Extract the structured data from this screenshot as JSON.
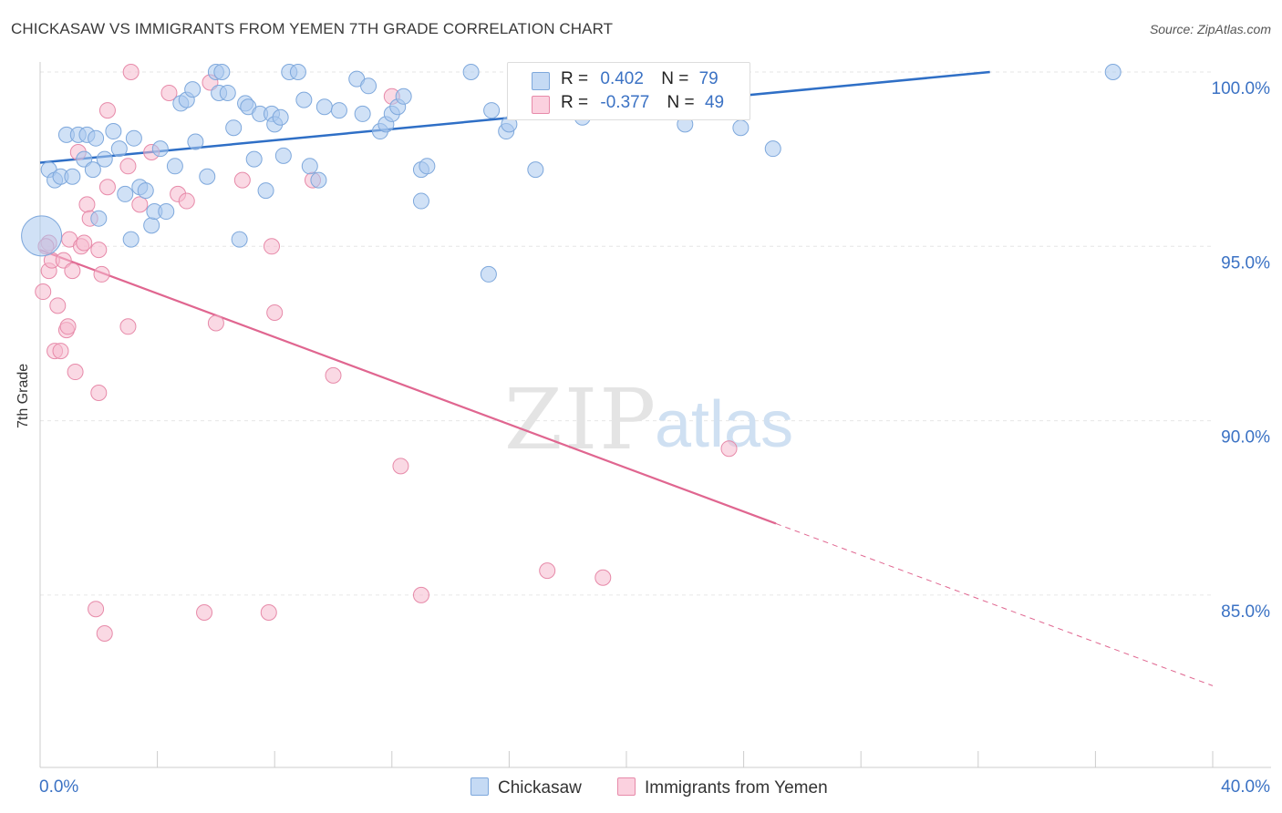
{
  "title": "CHICKASAW VS IMMIGRANTS FROM YEMEN 7TH GRADE CORRELATION CHART",
  "source": "Source: ZipAtlas.com",
  "watermark": {
    "zip": "ZIP",
    "atlas": "atlas"
  },
  "legend": {
    "rows": [
      {
        "r_label": "R =",
        "r_value": "0.402",
        "n_label": "N =",
        "n_value": "79",
        "color": "#aac8ee"
      },
      {
        "r_label": "R =",
        "r_value": "-0.377",
        "n_label": "N =",
        "n_value": "49",
        "color": "#f6b9cd"
      }
    ]
  },
  "bottom_legend": {
    "series_a": "Chickasaw",
    "series_b": "Immigrants from Yemen"
  },
  "colors": {
    "blue_fill": "#aac8ee",
    "blue_stroke": "#7ea8dc",
    "blue_line": "#2f6fc6",
    "pink_fill": "#f6b9cd",
    "pink_stroke": "#e78aa9",
    "pink_line": "#e06690",
    "tick_label": "#3b72c4",
    "grid": "#e6e6e6"
  },
  "chart_data": {
    "type": "scatter",
    "title": "CHICKASAW VS IMMIGRANTS FROM YEMEN 7TH GRADE CORRELATION CHART",
    "xlabel": "",
    "ylabel": "7th Grade",
    "xlim": [
      0,
      40
    ],
    "ylim": [
      80.5,
      100.8
    ],
    "x_tick_labels": [
      {
        "value": 0,
        "label": "0.0%"
      },
      {
        "value": 40,
        "label": "40.0%"
      }
    ],
    "y_tick_labels": [
      {
        "value": 85,
        "label": "85.0%"
      },
      {
        "value": 90,
        "label": "90.0%"
      },
      {
        "value": 95,
        "label": "95.0%"
      },
      {
        "value": 100,
        "label": "100.0%"
      }
    ],
    "legend_position": "top-center",
    "grid": true,
    "series": [
      {
        "name": "Chickasaw",
        "color": "#aac8ee",
        "trend": {
          "x": [
            0,
            32.4
          ],
          "y": [
            97.4,
            100.0
          ],
          "dashed_to": null
        },
        "points": [
          [
            0.05,
            95.3
          ],
          [
            0.3,
            97.2
          ],
          [
            0.5,
            96.9
          ],
          [
            0.7,
            97.0
          ],
          [
            0.9,
            98.2
          ],
          [
            1.1,
            97.0
          ],
          [
            1.3,
            98.2
          ],
          [
            1.5,
            97.5
          ],
          [
            1.6,
            98.2
          ],
          [
            1.8,
            97.2
          ],
          [
            1.9,
            98.1
          ],
          [
            2.0,
            95.8
          ],
          [
            2.2,
            97.5
          ],
          [
            2.5,
            98.3
          ],
          [
            2.7,
            97.8
          ],
          [
            2.9,
            96.5
          ],
          [
            3.1,
            95.2
          ],
          [
            3.2,
            98.1
          ],
          [
            3.4,
            96.7
          ],
          [
            3.6,
            96.6
          ],
          [
            3.8,
            95.6
          ],
          [
            3.9,
            96.0
          ],
          [
            4.1,
            97.8
          ],
          [
            4.3,
            96.0
          ],
          [
            4.6,
            97.3
          ],
          [
            4.8,
            99.1
          ],
          [
            5.0,
            99.2
          ],
          [
            5.2,
            99.5
          ],
          [
            5.3,
            98.0
          ],
          [
            5.7,
            97.0
          ],
          [
            6.0,
            100.0
          ],
          [
            6.1,
            99.4
          ],
          [
            6.2,
            100.0
          ],
          [
            6.4,
            99.4
          ],
          [
            6.6,
            98.4
          ],
          [
            6.8,
            95.2
          ],
          [
            7.0,
            99.1
          ],
          [
            7.1,
            99.0
          ],
          [
            7.3,
            97.5
          ],
          [
            7.5,
            98.8
          ],
          [
            7.7,
            96.6
          ],
          [
            7.9,
            98.8
          ],
          [
            8.0,
            98.5
          ],
          [
            8.2,
            98.7
          ],
          [
            8.3,
            97.6
          ],
          [
            8.5,
            100.0
          ],
          [
            8.8,
            100.0
          ],
          [
            9.0,
            99.2
          ],
          [
            9.2,
            97.3
          ],
          [
            9.5,
            96.9
          ],
          [
            9.7,
            99.0
          ],
          [
            10.2,
            98.9
          ],
          [
            10.8,
            99.8
          ],
          [
            11.0,
            98.8
          ],
          [
            11.2,
            99.6
          ],
          [
            11.6,
            98.3
          ],
          [
            11.8,
            98.5
          ],
          [
            12.0,
            98.8
          ],
          [
            12.2,
            99.0
          ],
          [
            12.4,
            99.3
          ],
          [
            13.0,
            97.2
          ],
          [
            13.2,
            97.3
          ],
          [
            13.0,
            96.3
          ],
          [
            14.7,
            100.0
          ],
          [
            15.3,
            94.2
          ],
          [
            15.4,
            98.9
          ],
          [
            15.9,
            98.3
          ],
          [
            16.0,
            98.5
          ],
          [
            16.5,
            100.0
          ],
          [
            16.9,
            97.2
          ],
          [
            17.8,
            100.0
          ],
          [
            18.5,
            98.7
          ],
          [
            18.8,
            100.0
          ],
          [
            20.0,
            98.9
          ],
          [
            21.3,
            100.0
          ],
          [
            22.0,
            98.5
          ],
          [
            22.9,
            100.0
          ],
          [
            23.9,
            98.4
          ],
          [
            25.0,
            97.8
          ],
          [
            36.6,
            100.0
          ]
        ]
      },
      {
        "name": "Immigrants from Yemen",
        "color": "#f6b9cd",
        "trend": {
          "x": [
            0,
            25.1
          ],
          "y": [
            94.9,
            87.05
          ],
          "dashed_to": {
            "x": 40,
            "y": 82.4
          }
        },
        "points": [
          [
            0.1,
            93.7
          ],
          [
            0.3,
            94.3
          ],
          [
            0.3,
            95.1
          ],
          [
            0.4,
            94.6
          ],
          [
            0.5,
            92.0
          ],
          [
            0.6,
            93.3
          ],
          [
            0.7,
            92.0
          ],
          [
            0.8,
            94.6
          ],
          [
            0.9,
            92.6
          ],
          [
            0.95,
            92.7
          ],
          [
            1.0,
            95.2
          ],
          [
            1.1,
            94.3
          ],
          [
            1.2,
            91.4
          ],
          [
            1.3,
            97.7
          ],
          [
            1.4,
            95.0
          ],
          [
            1.5,
            95.1
          ],
          [
            1.6,
            96.2
          ],
          [
            1.7,
            95.8
          ],
          [
            1.9,
            84.6
          ],
          [
            2.0,
            94.9
          ],
          [
            2.0,
            90.8
          ],
          [
            2.1,
            94.2
          ],
          [
            2.2,
            83.9
          ],
          [
            2.3,
            96.7
          ],
          [
            2.3,
            98.9
          ],
          [
            3.0,
            97.3
          ],
          [
            3.0,
            92.7
          ],
          [
            3.1,
            100.0
          ],
          [
            3.4,
            96.2
          ],
          [
            3.8,
            97.7
          ],
          [
            4.4,
            99.4
          ],
          [
            4.7,
            96.5
          ],
          [
            5.0,
            96.3
          ],
          [
            5.6,
            84.5
          ],
          [
            5.8,
            99.7
          ],
          [
            6.0,
            92.8
          ],
          [
            6.9,
            96.9
          ],
          [
            7.8,
            84.5
          ],
          [
            7.9,
            95.0
          ],
          [
            8.0,
            93.1
          ],
          [
            9.3,
            96.9
          ],
          [
            10.0,
            91.3
          ],
          [
            12.0,
            99.3
          ],
          [
            12.3,
            88.7
          ],
          [
            13.0,
            85.0
          ],
          [
            17.3,
            85.7
          ],
          [
            19.2,
            85.5
          ],
          [
            23.5,
            89.2
          ],
          [
            0.2,
            95.0
          ]
        ]
      }
    ]
  }
}
